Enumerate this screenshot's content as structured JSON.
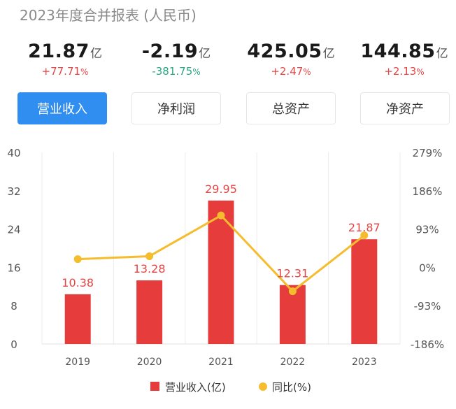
{
  "page": {
    "title": "2023年度合并报表 (人民币)"
  },
  "metrics": [
    {
      "value": "21.87",
      "unit": "亿",
      "change": "+77.71",
      "pct": "%",
      "dir": "up"
    },
    {
      "value": "-2.19",
      "unit": "亿",
      "change": "-381.75",
      "pct": "%",
      "dir": "down"
    },
    {
      "value": "425.05",
      "unit": "亿",
      "change": "+2.47",
      "pct": "%",
      "dir": "up"
    },
    {
      "value": "144.85",
      "unit": "亿",
      "change": "+2.13",
      "pct": "%",
      "dir": "up"
    }
  ],
  "tabs": [
    {
      "label": "营业收入",
      "active": true
    },
    {
      "label": "净利润",
      "active": false
    },
    {
      "label": "总资产",
      "active": false
    },
    {
      "label": "净资产",
      "active": false
    }
  ],
  "chart_data": {
    "type": "bar",
    "categories": [
      "2019",
      "2020",
      "2021",
      "2022",
      "2023"
    ],
    "series": [
      {
        "name": "营业收入(亿)",
        "type": "bar",
        "axis": "left",
        "values": [
          10.38,
          13.28,
          29.95,
          12.31,
          21.87
        ],
        "labels": [
          "10.38",
          "13.28",
          "29.95",
          "12.31",
          "21.87"
        ],
        "color": "#e63c3c"
      },
      {
        "name": "同比(%)",
        "type": "line",
        "axis": "right",
        "values": [
          20,
          27,
          126,
          -58,
          77.71
        ],
        "color": "#f5bd2d"
      }
    ],
    "left_axis": {
      "min": 0,
      "max": 40,
      "ticks": [
        0,
        8,
        16,
        24,
        32,
        40
      ],
      "tick_labels": [
        "0",
        "8",
        "16",
        "24",
        "32",
        "40"
      ]
    },
    "right_axis": {
      "min": -186,
      "max": 279,
      "ticks": [
        -186,
        -93,
        0,
        93,
        186,
        279
      ],
      "tick_labels": [
        "-186%",
        "-93%",
        "0%",
        "93%",
        "186%",
        "279%"
      ]
    },
    "legend": {
      "position": "bottom"
    },
    "grid": {
      "vertical": true,
      "horizontal": false
    }
  }
}
